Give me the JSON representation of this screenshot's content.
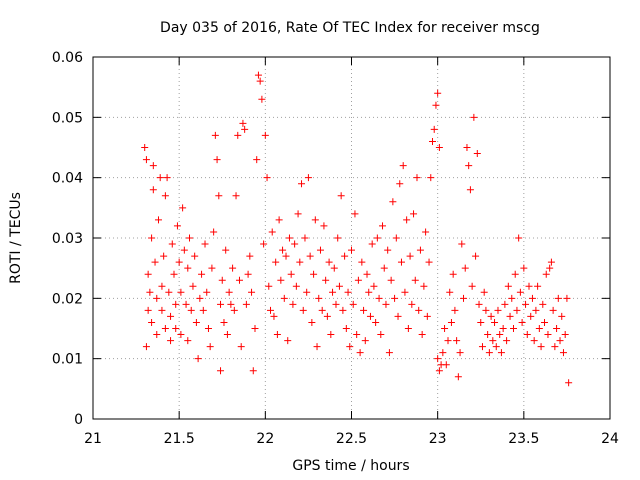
{
  "chart_data": {
    "type": "scatter",
    "title": "Day 035 of 2016, Rate Of TEC Index for receiver mscg",
    "xlabel": "GPS time / hours",
    "ylabel": "ROTI / TECUs",
    "xlim": [
      21,
      24
    ],
    "ylim": [
      0,
      0.06
    ],
    "x_ticks": [
      21,
      21.5,
      22,
      22.5,
      23,
      23.5,
      24
    ],
    "x_tick_labels": [
      "21",
      "21.5",
      "22",
      "22.5",
      "23",
      "23.5",
      "24"
    ],
    "y_ticks": [
      0,
      0.01,
      0.02,
      0.03,
      0.04,
      0.05,
      0.06
    ],
    "y_tick_labels": [
      "0",
      "0.01",
      "0.02",
      "0.03",
      "0.04",
      "0.05",
      "0.06"
    ],
    "grid": true,
    "marker": "+",
    "marker_color": "#ff0000",
    "series": [
      {
        "name": "ROTI",
        "points": [
          [
            21.3,
            0.045
          ],
          [
            21.31,
            0.043
          ],
          [
            21.31,
            0.012
          ],
          [
            21.32,
            0.018
          ],
          [
            21.32,
            0.024
          ],
          [
            21.33,
            0.021
          ],
          [
            21.34,
            0.016
          ],
          [
            21.34,
            0.03
          ],
          [
            21.35,
            0.038
          ],
          [
            21.35,
            0.042
          ],
          [
            21.36,
            0.026
          ],
          [
            21.37,
            0.02
          ],
          [
            21.37,
            0.014
          ],
          [
            21.38,
            0.033
          ],
          [
            21.39,
            0.04
          ],
          [
            21.4,
            0.022
          ],
          [
            21.4,
            0.018
          ],
          [
            21.41,
            0.027
          ],
          [
            21.42,
            0.015
          ],
          [
            21.42,
            0.037
          ],
          [
            21.43,
            0.04
          ],
          [
            21.44,
            0.021
          ],
          [
            21.45,
            0.013
          ],
          [
            21.45,
            0.017
          ],
          [
            21.46,
            0.029
          ],
          [
            21.47,
            0.024
          ],
          [
            21.48,
            0.015
          ],
          [
            21.48,
            0.019
          ],
          [
            21.49,
            0.032
          ],
          [
            21.5,
            0.026
          ],
          [
            21.51,
            0.014
          ],
          [
            21.51,
            0.021
          ],
          [
            21.52,
            0.035
          ],
          [
            21.53,
            0.028
          ],
          [
            21.54,
            0.019
          ],
          [
            21.55,
            0.013
          ],
          [
            21.55,
            0.025
          ],
          [
            21.56,
            0.03
          ],
          [
            21.57,
            0.018
          ],
          [
            21.58,
            0.022
          ],
          [
            21.59,
            0.027
          ],
          [
            21.6,
            0.016
          ],
          [
            21.61,
            0.01
          ],
          [
            21.62,
            0.02
          ],
          [
            21.63,
            0.024
          ],
          [
            21.64,
            0.018
          ],
          [
            21.65,
            0.029
          ],
          [
            21.66,
            0.021
          ],
          [
            21.67,
            0.015
          ],
          [
            21.68,
            0.012
          ],
          [
            21.69,
            0.025
          ],
          [
            21.7,
            0.031
          ],
          [
            21.71,
            0.047
          ],
          [
            21.72,
            0.043
          ],
          [
            21.73,
            0.037
          ],
          [
            21.74,
            0.008
          ],
          [
            21.74,
            0.019
          ],
          [
            21.75,
            0.023
          ],
          [
            21.76,
            0.016
          ],
          [
            21.77,
            0.028
          ],
          [
            21.78,
            0.014
          ],
          [
            21.79,
            0.021
          ],
          [
            21.8,
            0.019
          ],
          [
            21.81,
            0.025
          ],
          [
            21.82,
            0.018
          ],
          [
            21.83,
            0.037
          ],
          [
            21.84,
            0.047
          ],
          [
            21.85,
            0.023
          ],
          [
            21.86,
            0.012
          ],
          [
            21.87,
            0.049
          ],
          [
            21.88,
            0.048
          ],
          [
            21.89,
            0.019
          ],
          [
            21.9,
            0.024
          ],
          [
            21.91,
            0.027
          ],
          [
            21.92,
            0.021
          ],
          [
            21.93,
            0.008
          ],
          [
            21.94,
            0.015
          ],
          [
            21.95,
            0.043
          ],
          [
            21.96,
            0.057
          ],
          [
            21.97,
            0.056
          ],
          [
            21.98,
            0.053
          ],
          [
            21.99,
            0.029
          ],
          [
            22.0,
            0.047
          ],
          [
            22.01,
            0.04
          ],
          [
            22.02,
            0.022
          ],
          [
            22.03,
            0.018
          ],
          [
            22.04,
            0.031
          ],
          [
            22.05,
            0.017
          ],
          [
            22.06,
            0.026
          ],
          [
            22.07,
            0.014
          ],
          [
            22.08,
            0.033
          ],
          [
            22.09,
            0.023
          ],
          [
            22.1,
            0.028
          ],
          [
            22.11,
            0.02
          ],
          [
            22.12,
            0.027
          ],
          [
            22.13,
            0.013
          ],
          [
            22.14,
            0.03
          ],
          [
            22.15,
            0.024
          ],
          [
            22.16,
            0.019
          ],
          [
            22.17,
            0.029
          ],
          [
            22.18,
            0.022
          ],
          [
            22.19,
            0.034
          ],
          [
            22.2,
            0.026
          ],
          [
            22.21,
            0.039
          ],
          [
            22.22,
            0.018
          ],
          [
            22.23,
            0.03
          ],
          [
            22.24,
            0.021
          ],
          [
            22.25,
            0.04
          ],
          [
            22.26,
            0.027
          ],
          [
            22.27,
            0.016
          ],
          [
            22.28,
            0.024
          ],
          [
            22.29,
            0.033
          ],
          [
            22.3,
            0.012
          ],
          [
            22.31,
            0.02
          ],
          [
            22.32,
            0.028
          ],
          [
            22.33,
            0.018
          ],
          [
            22.34,
            0.032
          ],
          [
            22.35,
            0.023
          ],
          [
            22.36,
            0.017
          ],
          [
            22.37,
            0.026
          ],
          [
            22.38,
            0.014
          ],
          [
            22.39,
            0.021
          ],
          [
            22.4,
            0.025
          ],
          [
            22.41,
            0.019
          ],
          [
            22.42,
            0.03
          ],
          [
            22.43,
            0.022
          ],
          [
            22.44,
            0.037
          ],
          [
            22.45,
            0.018
          ],
          [
            22.46,
            0.027
          ],
          [
            22.47,
            0.015
          ],
          [
            22.48,
            0.021
          ],
          [
            22.49,
            0.012
          ],
          [
            22.5,
            0.028
          ],
          [
            22.51,
            0.019
          ],
          [
            22.52,
            0.034
          ],
          [
            22.53,
            0.014
          ],
          [
            22.54,
            0.023
          ],
          [
            22.55,
            0.011
          ],
          [
            22.56,
            0.026
          ],
          [
            22.57,
            0.018
          ],
          [
            22.58,
            0.013
          ],
          [
            22.59,
            0.024
          ],
          [
            22.6,
            0.021
          ],
          [
            22.61,
            0.017
          ],
          [
            22.62,
            0.029
          ],
          [
            22.63,
            0.022
          ],
          [
            22.64,
            0.016
          ],
          [
            22.65,
            0.03
          ],
          [
            22.66,
            0.02
          ],
          [
            22.67,
            0.014
          ],
          [
            22.68,
            0.032
          ],
          [
            22.69,
            0.025
          ],
          [
            22.7,
            0.019
          ],
          [
            22.71,
            0.028
          ],
          [
            22.72,
            0.011
          ],
          [
            22.73,
            0.023
          ],
          [
            22.74,
            0.036
          ],
          [
            22.75,
            0.02
          ],
          [
            22.76,
            0.03
          ],
          [
            22.77,
            0.017
          ],
          [
            22.78,
            0.039
          ],
          [
            22.79,
            0.026
          ],
          [
            22.8,
            0.042
          ],
          [
            22.81,
            0.021
          ],
          [
            22.82,
            0.033
          ],
          [
            22.83,
            0.015
          ],
          [
            22.84,
            0.027
          ],
          [
            22.85,
            0.019
          ],
          [
            22.86,
            0.034
          ],
          [
            22.87,
            0.023
          ],
          [
            22.88,
            0.04
          ],
          [
            22.89,
            0.018
          ],
          [
            22.9,
            0.028
          ],
          [
            22.91,
            0.014
          ],
          [
            22.92,
            0.022
          ],
          [
            22.93,
            0.031
          ],
          [
            22.94,
            0.017
          ],
          [
            22.95,
            0.026
          ],
          [
            22.96,
            0.04
          ],
          [
            22.97,
            0.046
          ],
          [
            22.98,
            0.048
          ],
          [
            22.99,
            0.052
          ],
          [
            23.0,
            0.054
          ],
          [
            23.01,
            0.045
          ],
          [
            23.0,
            0.01
          ],
          [
            23.01,
            0.008
          ],
          [
            23.02,
            0.009
          ],
          [
            23.03,
            0.011
          ],
          [
            23.04,
            0.015
          ],
          [
            23.05,
            0.009
          ],
          [
            23.06,
            0.013
          ],
          [
            23.07,
            0.021
          ],
          [
            23.08,
            0.016
          ],
          [
            23.09,
            0.024
          ],
          [
            23.1,
            0.018
          ],
          [
            23.11,
            0.013
          ],
          [
            23.12,
            0.007
          ],
          [
            23.13,
            0.011
          ],
          [
            23.14,
            0.029
          ],
          [
            23.15,
            0.02
          ],
          [
            23.16,
            0.025
          ],
          [
            23.17,
            0.045
          ],
          [
            23.18,
            0.042
          ],
          [
            23.19,
            0.038
          ],
          [
            23.2,
            0.022
          ],
          [
            23.21,
            0.05
          ],
          [
            23.22,
            0.027
          ],
          [
            23.23,
            0.044
          ],
          [
            23.24,
            0.019
          ],
          [
            23.25,
            0.016
          ],
          [
            23.26,
            0.012
          ],
          [
            23.27,
            0.021
          ],
          [
            23.28,
            0.018
          ],
          [
            23.29,
            0.014
          ],
          [
            23.3,
            0.011
          ],
          [
            23.31,
            0.017
          ],
          [
            23.32,
            0.013
          ],
          [
            23.33,
            0.016
          ],
          [
            23.34,
            0.012
          ],
          [
            23.35,
            0.018
          ],
          [
            23.36,
            0.014
          ],
          [
            23.37,
            0.011
          ],
          [
            23.38,
            0.015
          ],
          [
            23.39,
            0.019
          ],
          [
            23.4,
            0.013
          ],
          [
            23.41,
            0.022
          ],
          [
            23.42,
            0.017
          ],
          [
            23.43,
            0.02
          ],
          [
            23.44,
            0.015
          ],
          [
            23.45,
            0.024
          ],
          [
            23.46,
            0.018
          ],
          [
            23.47,
            0.03
          ],
          [
            23.48,
            0.021
          ],
          [
            23.49,
            0.016
          ],
          [
            23.5,
            0.025
          ],
          [
            23.51,
            0.019
          ],
          [
            23.52,
            0.014
          ],
          [
            23.53,
            0.022
          ],
          [
            23.54,
            0.017
          ],
          [
            23.55,
            0.02
          ],
          [
            23.56,
            0.013
          ],
          [
            23.57,
            0.018
          ],
          [
            23.58,
            0.022
          ],
          [
            23.59,
            0.015
          ],
          [
            23.6,
            0.012
          ],
          [
            23.61,
            0.019
          ],
          [
            23.62,
            0.016
          ],
          [
            23.63,
            0.024
          ],
          [
            23.64,
            0.014
          ],
          [
            23.65,
            0.025
          ],
          [
            23.66,
            0.026
          ],
          [
            23.67,
            0.018
          ],
          [
            23.68,
            0.012
          ],
          [
            23.69,
            0.015
          ],
          [
            23.7,
            0.02
          ],
          [
            23.71,
            0.013
          ],
          [
            23.72,
            0.017
          ],
          [
            23.73,
            0.011
          ],
          [
            23.74,
            0.014
          ],
          [
            23.75,
            0.02
          ],
          [
            23.76,
            0.006
          ]
        ]
      }
    ]
  }
}
